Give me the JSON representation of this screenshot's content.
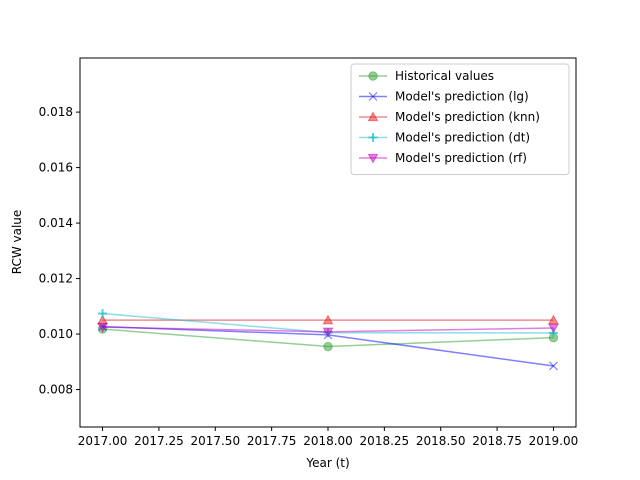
{
  "chart_data": {
    "type": "line",
    "title": "",
    "xlabel": "Year (t)",
    "ylabel": "RCW value",
    "x": [
      2017.0,
      2018.0,
      2019.0
    ],
    "xlim": [
      2016.9,
      2019.1
    ],
    "ylim": [
      0.00665,
      0.01995
    ],
    "x_ticks": [
      2017.0,
      2017.25,
      2017.5,
      2017.75,
      2018.0,
      2018.25,
      2018.5,
      2018.75,
      2019.0
    ],
    "x_tick_labels": [
      "2017.00",
      "2017.25",
      "2017.50",
      "2017.75",
      "2018.00",
      "2018.25",
      "2018.50",
      "2018.75",
      "2019.00"
    ],
    "y_ticks": [
      0.008,
      0.01,
      0.012,
      0.014,
      0.016,
      0.018
    ],
    "y_tick_labels": [
      "0.008",
      "0.010",
      "0.012",
      "0.014",
      "0.016",
      "0.018"
    ],
    "grid": false,
    "legend_position": "top-right",
    "series": [
      {
        "name": "Historical values",
        "values": [
          0.01018,
          0.00955,
          0.00987
        ],
        "color": "#2ca02c",
        "marker": "circle"
      },
      {
        "name": "Model's prediction (lg)",
        "values": [
          0.01027,
          0.00997,
          0.00885
        ],
        "color": "#0000ff",
        "marker": "x"
      },
      {
        "name": "Model's prediction (knn)",
        "values": [
          0.0105,
          0.0105,
          0.0105
        ],
        "color": "#e41a1c",
        "marker": "triangle-up"
      },
      {
        "name": "Model's prediction (dt)",
        "values": [
          0.01074,
          0.01005,
          0.01004
        ],
        "color": "#17becf",
        "marker": "plus"
      },
      {
        "name": "Model's prediction (rf)",
        "values": [
          0.01025,
          0.01008,
          0.01022
        ],
        "color": "#bf00bf",
        "marker": "triangle-down"
      }
    ]
  }
}
